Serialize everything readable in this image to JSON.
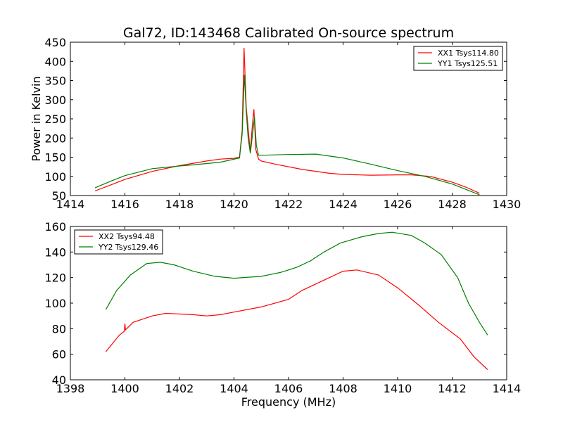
{
  "chart_data": [
    {
      "type": "line",
      "title": "Gal72, ID:143468 Calibrated On-source spectrum",
      "xlabel": "",
      "ylabel": "Power in Kelvin",
      "xlim": [
        1414,
        1430
      ],
      "ylim": [
        50,
        450
      ],
      "xticks": [
        1414,
        1416,
        1418,
        1420,
        1422,
        1424,
        1426,
        1428,
        1430
      ],
      "yticks": [
        50,
        100,
        150,
        200,
        250,
        300,
        350,
        400,
        450
      ],
      "legend_position": "top-right",
      "series": [
        {
          "name": "XX1 Tsys114.80",
          "color": "#ff0000",
          "x": [
            1414.9,
            1415.5,
            1416,
            1417,
            1418,
            1419,
            1419.5,
            1420,
            1420.2,
            1420.3,
            1420.37,
            1420.45,
            1420.5,
            1420.55,
            1420.6,
            1420.68,
            1420.73,
            1420.8,
            1420.9,
            1421,
            1421.5,
            1422.5,
            1423.5,
            1424,
            1425,
            1426,
            1426.5,
            1427.2,
            1428,
            1428.5,
            1429
          ],
          "y": [
            62,
            78,
            92,
            113,
            128,
            140,
            145,
            147,
            150,
            220,
            435,
            280,
            240,
            200,
            165,
            240,
            275,
            170,
            145,
            140,
            132,
            118,
            108,
            105,
            103,
            104,
            104,
            100,
            85,
            72,
            56
          ]
        },
        {
          "name": "YY1 Tsys125.51",
          "color": "#008000",
          "x": [
            1414.9,
            1415.5,
            1416,
            1417,
            1418,
            1418.5,
            1419.5,
            1420.2,
            1420.3,
            1420.38,
            1420.45,
            1420.52,
            1420.6,
            1420.68,
            1420.75,
            1420.82,
            1420.9,
            1422,
            1423,
            1424,
            1425,
            1426,
            1427,
            1428,
            1429
          ],
          "y": [
            70,
            88,
            102,
            120,
            127,
            130,
            137,
            148,
            210,
            365,
            270,
            200,
            160,
            210,
            255,
            180,
            155,
            157,
            158,
            148,
            132,
            115,
            100,
            80,
            52
          ]
        }
      ]
    },
    {
      "type": "line",
      "title": "",
      "xlabel": "Frequency (MHz)",
      "ylabel": "",
      "xlim": [
        1398,
        1414
      ],
      "ylim": [
        40,
        160
      ],
      "xticks": [
        1398,
        1400,
        1402,
        1404,
        1406,
        1408,
        1410,
        1412,
        1414
      ],
      "yticks": [
        40,
        60,
        80,
        100,
        120,
        140,
        160
      ],
      "legend_position": "top-left",
      "series": [
        {
          "name": "XX2 Tsys94.48",
          "color": "#ff0000",
          "x": [
            1399.3,
            1399.8,
            1399.98,
            1400.0,
            1400.02,
            1400.3,
            1401,
            1401.5,
            1402.5,
            1403,
            1403.5,
            1404,
            1405,
            1406,
            1406.5,
            1407.3,
            1408,
            1408.5,
            1409.3,
            1410,
            1410.8,
            1411.5,
            1412.3,
            1412.8,
            1413.3
          ],
          "y": [
            62,
            75,
            78,
            84,
            79,
            85,
            90,
            92,
            91,
            90,
            91,
            93,
            97,
            103,
            110,
            118,
            125,
            126,
            122,
            112,
            98,
            85,
            72,
            58,
            48
          ]
        },
        {
          "name": "YY2 Tsys129.46",
          "color": "#008000",
          "x": [
            1399.3,
            1399.7,
            1400.2,
            1400.8,
            1401.3,
            1401.8,
            1402.5,
            1403.3,
            1404,
            1405,
            1405.7,
            1406.3,
            1406.8,
            1407.3,
            1407.9,
            1408.7,
            1409.3,
            1409.8,
            1410.5,
            1411,
            1411.6,
            1412.2,
            1412.6,
            1413,
            1413.3
          ],
          "y": [
            95,
            110,
            122,
            131,
            132,
            130,
            125,
            121,
            119.5,
            121,
            124,
            128,
            133,
            140,
            147,
            152,
            154.5,
            155.5,
            153,
            147,
            138,
            120,
            100,
            85,
            75
          ]
        }
      ]
    }
  ]
}
